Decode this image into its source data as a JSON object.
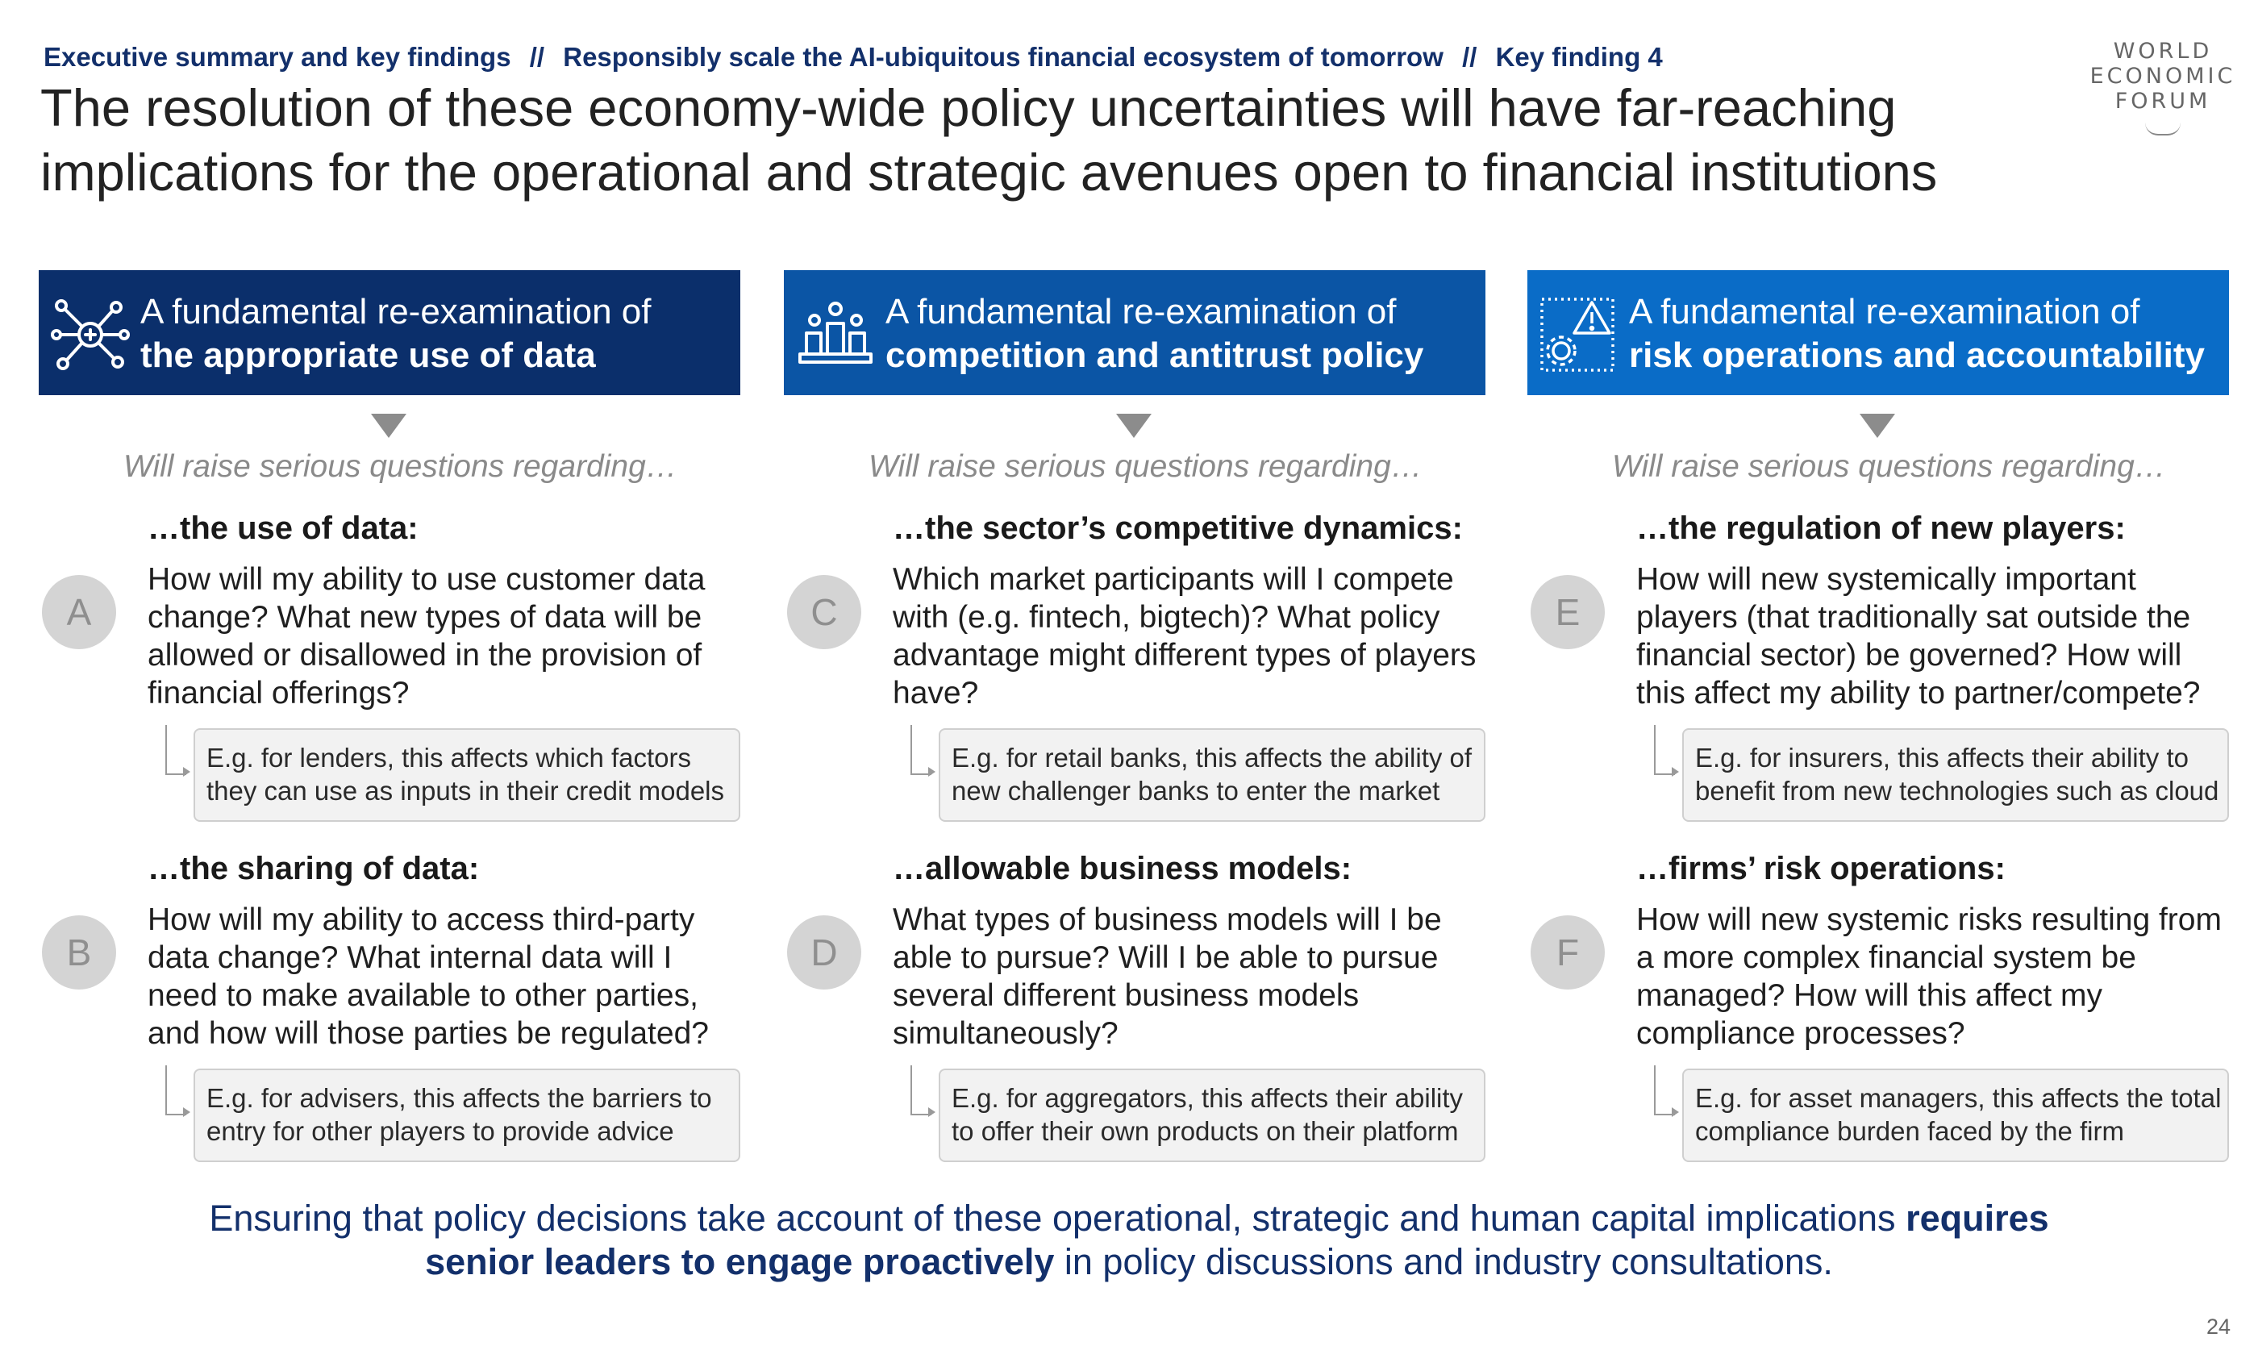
{
  "breadcrumb": {
    "section": "Executive summary and key findings",
    "separator": "//",
    "chapter": "Responsibly scale the AI-ubiquitous financial ecosystem of tomorrow",
    "finding": "Key finding 4"
  },
  "title": {
    "line1": "The resolution of these economy-wide policy uncertainties will have far-reaching",
    "line2": "implications for the operational and strategic avenues open to financial institutions"
  },
  "logo": {
    "line1": "WORLD",
    "line2": "ECONOMIC",
    "line3": "FORUM"
  },
  "colors": {
    "navy": "#0b2f6b",
    "blue": "#0b55a5",
    "bright_blue": "#0a6cc7",
    "text_blue": "#13306b"
  },
  "columns": [
    {
      "icon": "network-nodes-icon",
      "header_line1": "A fundamental re-examination of",
      "header_line2": "the appropriate use of data",
      "intro": "Will raise serious questions regarding…",
      "blocks": [
        {
          "letter": "A",
          "heading": "…the use of data:",
          "question": "How will my ability to use customer data change? What new types of data will be allowed or disallowed in the provision of financial offerings?",
          "example": "E.g. for lenders, this affects which factors they can use as inputs in their credit models"
        },
        {
          "letter": "B",
          "heading": "…the sharing of data:",
          "question": "How will my ability to access third-party data change? What internal data will I need to make available to other parties, and how will those parties be regulated?",
          "example": "E.g. for advisers, this affects the barriers to entry for other players to provide advice"
        }
      ]
    },
    {
      "icon": "competitors-podium-icon",
      "header_line1": "A fundamental re-examination of",
      "header_line2": "competition and antitrust policy",
      "intro": "Will raise serious questions regarding…",
      "blocks": [
        {
          "letter": "C",
          "heading": "…the sector’s competitive dynamics:",
          "question": "Which market participants will I compete with (e.g. fintech, bigtech)? What policy advantage might different types of players have?",
          "example": "E.g. for retail banks, this affects the ability of new challenger banks to enter the market"
        },
        {
          "letter": "D",
          "heading": "…allowable business models:",
          "question": "What types of business models will I be able to pursue? Will I be able to pursue several different business models simultaneously?",
          "example": "E.g. for aggregators, this affects their ability to offer their own products on their platform"
        }
      ]
    },
    {
      "icon": "risk-warning-gear-icon",
      "header_line1": "A fundamental re-examination of",
      "header_line2": "risk operations and accountability",
      "intro": "Will raise serious questions regarding…",
      "blocks": [
        {
          "letter": "E",
          "heading": "…the regulation of new players:",
          "question": "How will new systemically important players (that traditionally sat outside the financial sector) be governed? How will this affect my ability to partner/compete?",
          "example": "E.g. for insurers, this affects their ability to benefit from new technologies such as cloud"
        },
        {
          "letter": "F",
          "heading": "…firms’ risk operations:",
          "question": "How will new systemic risks resulting from a more complex financial system be managed? How will this affect my compliance processes?",
          "example": "E.g. for asset managers, this affects the total compliance burden faced by the firm"
        }
      ]
    }
  ],
  "footer": {
    "text1": "Ensuring that policy decisions take account of these operational, strategic and human capital implications ",
    "bold1": "requires",
    "bold2": "senior leaders to engage proactively",
    "text2": " in policy discussions and industry consultations."
  },
  "page_number": "24"
}
